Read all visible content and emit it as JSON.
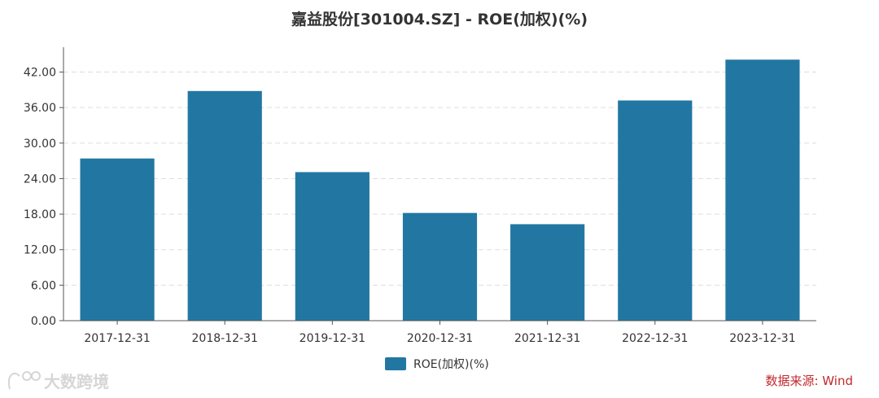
{
  "chart_data": {
    "type": "bar",
    "title": "嘉益股份[301004.SZ] - ROE(加权)(%)",
    "categories": [
      "2017-12-31",
      "2018-12-31",
      "2019-12-31",
      "2020-12-31",
      "2021-12-31",
      "2022-12-31",
      "2023-12-31"
    ],
    "series": [
      {
        "name": "ROE(加权)(%)",
        "values": [
          27.4,
          38.8,
          25.1,
          18.2,
          16.3,
          37.2,
          44.1
        ]
      }
    ],
    "ylim": [
      0,
      46.2
    ],
    "yticks": [
      0,
      6,
      12,
      18,
      24,
      30,
      36,
      42
    ],
    "ytick_labels": [
      "0.00",
      "6.00",
      "12.00",
      "18.00",
      "24.00",
      "30.00",
      "36.00",
      "42.00"
    ],
    "grid": true,
    "legend": "bottom-center",
    "colors": {
      "bar": "#2277a2",
      "grid": "#dddddd",
      "axis": "#555555",
      "source": "#c0292d"
    }
  },
  "source_label": "数据来源: Wind",
  "watermark_label": "大数跨境"
}
